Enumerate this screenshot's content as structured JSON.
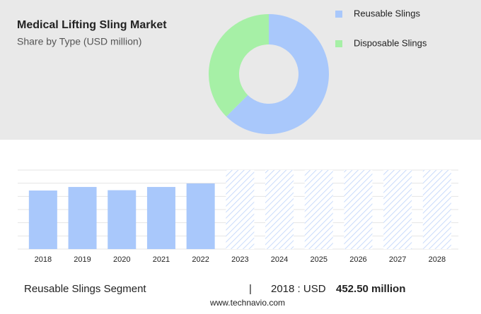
{
  "title": "Medical Lifting Sling Market",
  "subtitle": "Share by Type (USD million)",
  "chart_data": [
    {
      "type": "donut",
      "categories": [
        "Reusable Slings",
        "Disposable Slings"
      ],
      "values": [
        62.5,
        37.5
      ],
      "colors": [
        "#a9c8fb",
        "#a6f0a6"
      ]
    },
    {
      "type": "bar",
      "categories": [
        "2018",
        "2019",
        "2020",
        "2021",
        "2022",
        "2023",
        "2024",
        "2025",
        "2026",
        "2027",
        "2028"
      ],
      "values": [
        452.5,
        480,
        455,
        480,
        507,
        null,
        null,
        null,
        null,
        null,
        null
      ],
      "color": "#a9c8fb"
    }
  ],
  "footer": {
    "segment": "Reusable Slings Segment",
    "label": "2018 : USD",
    "value": "452.50 million",
    "source": "www.technavio.com"
  }
}
